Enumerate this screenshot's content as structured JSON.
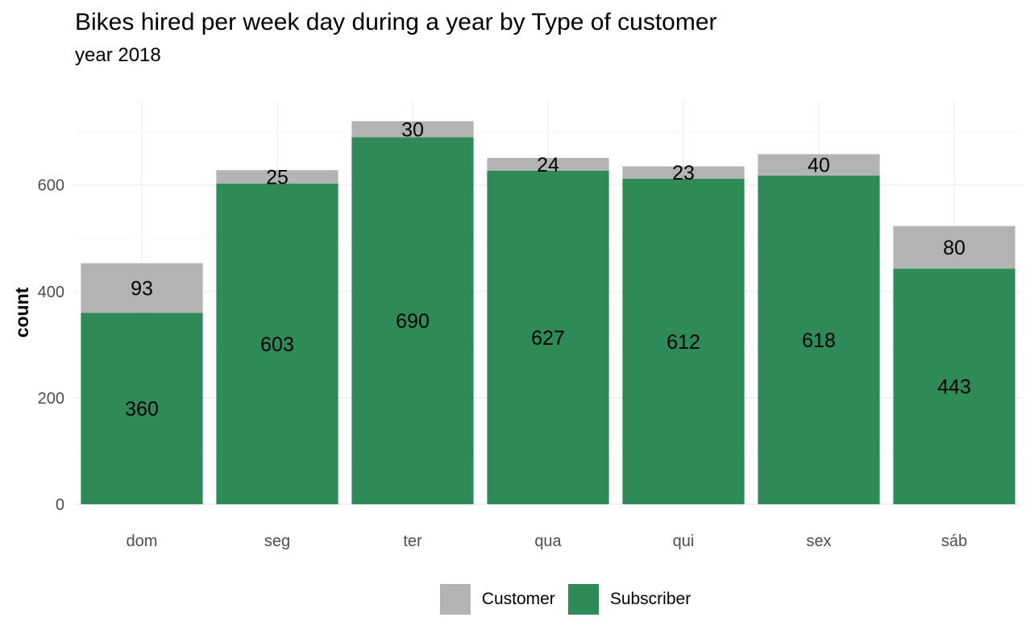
{
  "chart_data": {
    "type": "bar",
    "stacked": true,
    "title": "Bikes hired per week day during a year by Type of customer",
    "subtitle": "year 2018",
    "xlabel": "",
    "ylabel": "count",
    "categories": [
      "dom",
      "seg",
      "ter",
      "qua",
      "qui",
      "sex",
      "sáb"
    ],
    "series": [
      {
        "name": "Subscriber",
        "color": "#2e8b57",
        "values": [
          360,
          603,
          690,
          627,
          612,
          618,
          443
        ]
      },
      {
        "name": "Customer",
        "color": "#b3b3b3",
        "values": [
          93,
          25,
          30,
          24,
          23,
          40,
          80
        ]
      }
    ],
    "ylim": [
      0,
      760
    ],
    "yticks": [
      0,
      200,
      400,
      600
    ],
    "grid": true,
    "legend": {
      "position": "bottom",
      "entries": [
        {
          "name": "Customer",
          "color": "#b3b3b3"
        },
        {
          "name": "Subscriber",
          "color": "#2e8b57"
        }
      ]
    }
  }
}
